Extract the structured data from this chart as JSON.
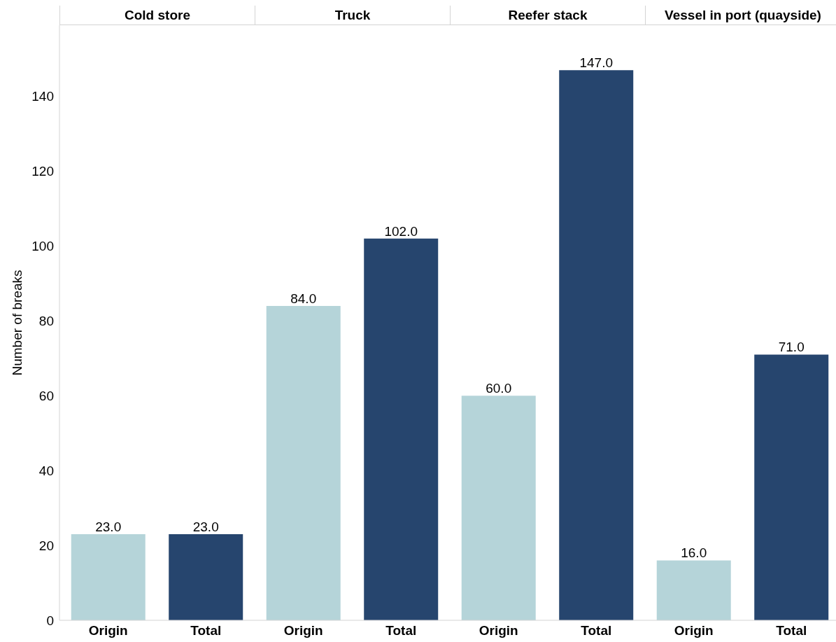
{
  "chart_data": [
    {
      "type": "bar",
      "title": "Cold store",
      "ylabel": "Number of breaks",
      "categories": [
        "Origin",
        "Total"
      ],
      "values": [
        23,
        23
      ],
      "colors": [
        "#b5d4d9",
        "#26456e"
      ],
      "value_labels": [
        "23.0",
        "23.0"
      ],
      "ylim": [
        0,
        159
      ],
      "yticks": [
        0,
        20,
        40,
        60,
        80,
        100,
        120,
        140
      ]
    },
    {
      "type": "bar",
      "title": "Truck",
      "categories": [
        "Origin",
        "Total"
      ],
      "values": [
        84,
        102
      ],
      "colors": [
        "#b5d4d9",
        "#26456e"
      ],
      "value_labels": [
        "84.0",
        "102.0"
      ],
      "ylim": [
        0,
        159
      ],
      "yticks": [
        0,
        20,
        40,
        60,
        80,
        100,
        120,
        140
      ],
      "tick_labels": "x"
    },
    {
      "type": "bar",
      "title": "Reefer stack",
      "categories": [
        "Origin",
        "Total"
      ],
      "values": [
        60,
        147
      ],
      "colors": [
        "#b5d4d9",
        "#26456e"
      ],
      "value_labels": [
        "60.0",
        "147.0"
      ],
      "ylim": [
        0,
        159
      ],
      "yticks": [
        0,
        20,
        40,
        60,
        80,
        100,
        120,
        140
      ],
      "tick_labels": "x"
    },
    {
      "type": "bar",
      "title": "Vessel in port (quayside)",
      "categories": [
        "Origin",
        "Total"
      ],
      "values": [
        16,
        71
      ],
      "colors": [
        "#b5d4d9",
        "#26456e"
      ],
      "value_labels": [
        "16.0",
        "71.0"
      ],
      "ylim": [
        0,
        159
      ],
      "yticks": [
        0,
        20,
        40,
        60,
        80,
        100,
        120,
        140
      ],
      "tick_labels": "x"
    }
  ]
}
